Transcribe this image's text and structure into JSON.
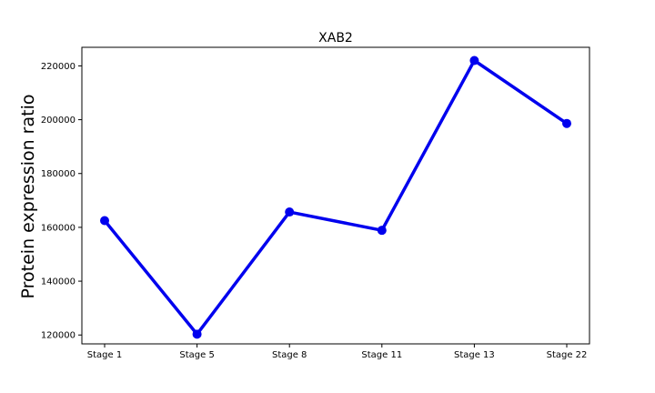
{
  "chart_data": {
    "type": "line",
    "title": "XAB2",
    "xlabel": "",
    "ylabel": "Protein expression ratio",
    "categories": [
      "Stage 1",
      "Stage 5",
      "Stage 8",
      "Stage 11",
      "Stage 13",
      "Stage 22"
    ],
    "series": [
      {
        "values": [
          162500,
          120300,
          165700,
          158900,
          222000,
          198600
        ],
        "color": "#0000ee"
      }
    ],
    "yticks": [
      120000,
      140000,
      160000,
      180000,
      200000,
      220000
    ],
    "ylim": [
      116700,
      226900
    ],
    "grid": false,
    "legend": "none"
  }
}
